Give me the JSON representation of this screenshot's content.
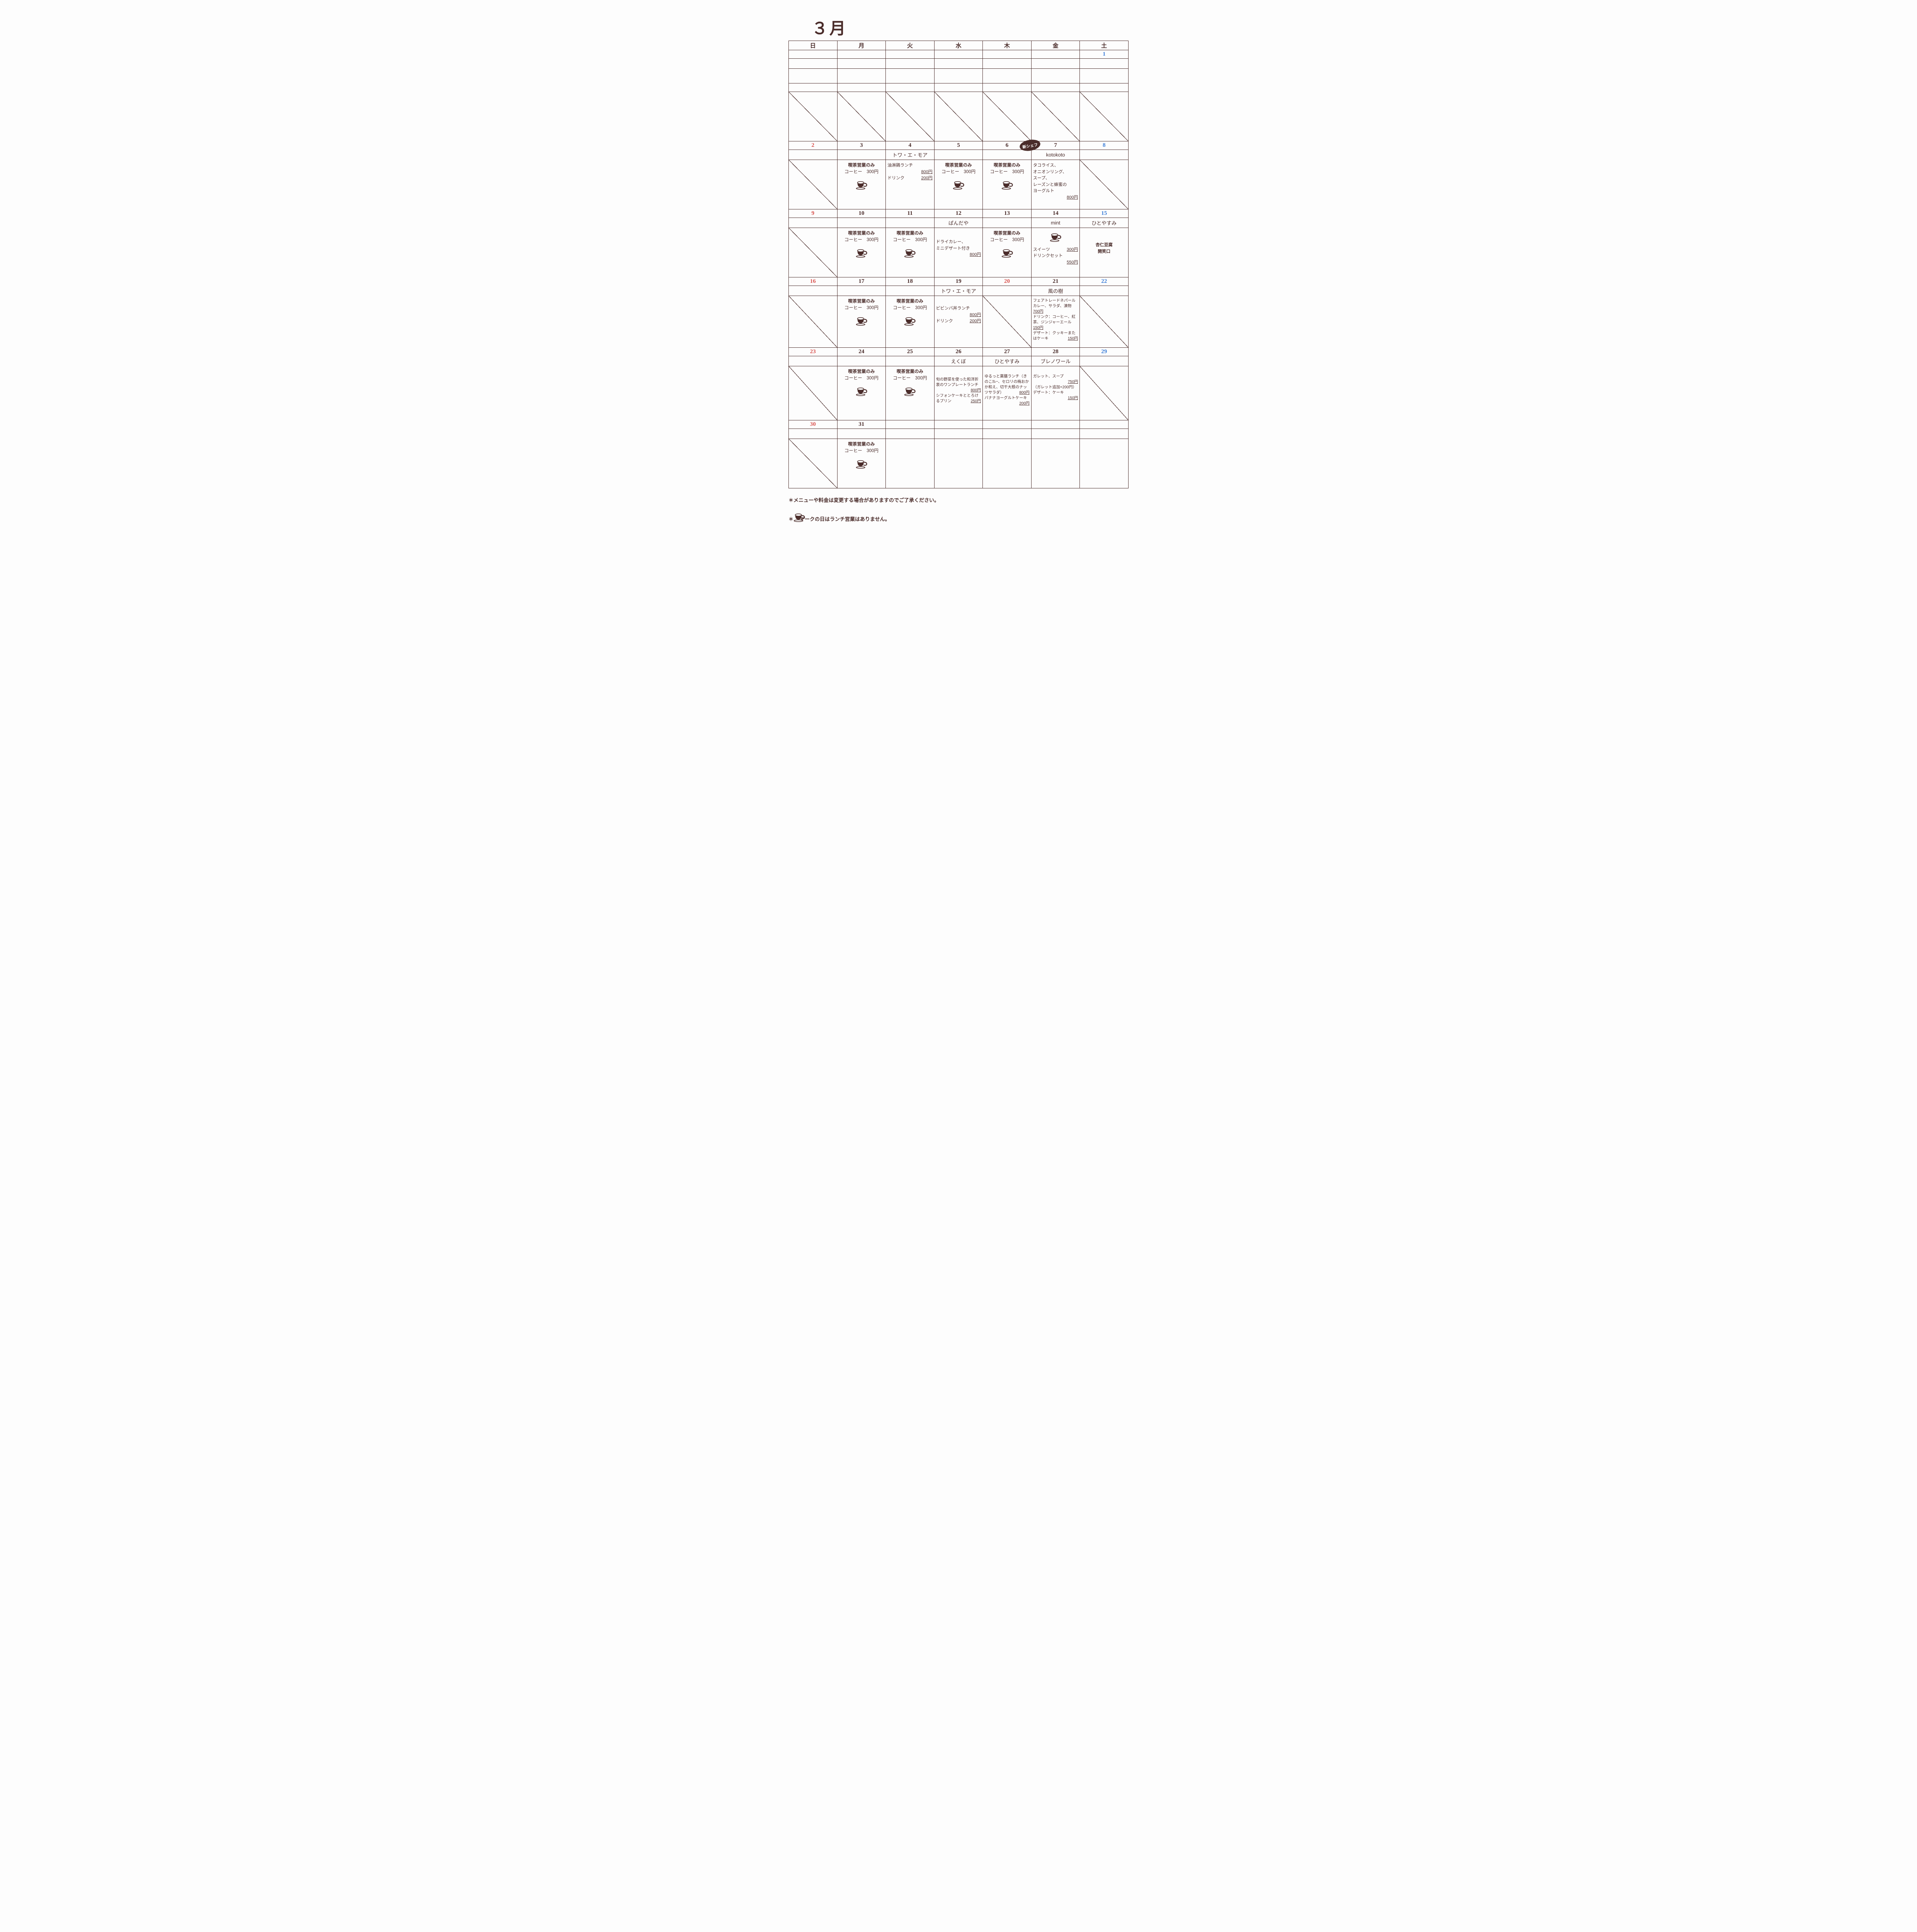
{
  "month_title": "３月",
  "day_headers": [
    "日",
    "月",
    "火",
    "水",
    "木",
    "金",
    "土"
  ],
  "coffee": {
    "line1": "喫茶営業のみ",
    "line2": "コーヒー　300円"
  },
  "badge_text": "新シェフ",
  "weeks": [
    {
      "nums": [
        "",
        "",
        "",
        "",
        "",
        "",
        "1"
      ],
      "num_cls": [
        "",
        "",
        "",
        "",
        "",
        "",
        "sat"
      ],
      "subs": [
        "",
        "",
        "",
        "",
        "",
        "",
        ""
      ],
      "body_h": 38,
      "cells": [
        {
          "t": "blank"
        },
        {
          "t": "blank"
        },
        {
          "t": "blank"
        },
        {
          "t": "blank"
        },
        {
          "t": "blank"
        },
        {
          "t": "blank"
        },
        {
          "t": "blank"
        }
      ]
    },
    {
      "nums": [
        "",
        "",
        "",
        "",
        "",
        "",
        ""
      ],
      "num_cls": [
        "",
        "",
        "",
        "",
        "",
        "",
        ""
      ],
      "subs": null,
      "body_h": 128,
      "cells": [
        {
          "t": "slash"
        },
        {
          "t": "slash"
        },
        {
          "t": "slash"
        },
        {
          "t": "slash"
        },
        {
          "t": "slash"
        },
        {
          "t": "slash"
        },
        {
          "t": "slash"
        }
      ]
    },
    {
      "nums": [
        "2",
        "3",
        "4",
        "5",
        "6",
        "7",
        "8"
      ],
      "num_cls": [
        "sun",
        "",
        "",
        "",
        "",
        "",
        "sat"
      ],
      "badge_at": 4,
      "subs": [
        "",
        "",
        "トワ・エ・モア",
        "",
        "",
        "kotokoto",
        ""
      ],
      "body_h": 128,
      "cells": [
        {
          "t": "slash"
        },
        {
          "t": "coffee"
        },
        {
          "t": "menu",
          "lines": [
            {
              "text": "油淋鶏ランチ",
              "price": ""
            },
            {
              "text": "",
              "price": "800円"
            },
            {
              "text": "ドリンク",
              "price": "200円"
            }
          ]
        },
        {
          "t": "coffee"
        },
        {
          "t": "coffee"
        },
        {
          "t": "menu",
          "lines": [
            {
              "text": "タコライス、",
              "price": ""
            },
            {
              "text": "オニオンリング、",
              "price": ""
            },
            {
              "text": "スープ、",
              "price": ""
            },
            {
              "text": "レーズンと蜂蜜の",
              "price": ""
            },
            {
              "text": "ヨーグルト",
              "price": ""
            },
            {
              "text": "",
              "price": "800円"
            }
          ]
        },
        {
          "t": "slash"
        }
      ]
    },
    {
      "nums": [
        "9",
        "10",
        "11",
        "12",
        "13",
        "14",
        "15"
      ],
      "num_cls": [
        "sun",
        "",
        "",
        "",
        "",
        "",
        "sat"
      ],
      "subs": [
        "",
        "",
        "",
        "ぱんだや",
        "",
        "mint",
        "ひとやすみ"
      ],
      "body_h": 128,
      "cells": [
        {
          "t": "slash"
        },
        {
          "t": "coffee"
        },
        {
          "t": "coffee"
        },
        {
          "t": "menu",
          "lines": [
            {
              "text": "ドライカレー、",
              "price": ""
            },
            {
              "text": "ミニデザート付き",
              "price": ""
            },
            {
              "text": "",
              "price": "800円"
            }
          ],
          "pushdown": 22
        },
        {
          "t": "coffee"
        },
        {
          "t": "menu",
          "center_icon": true,
          "lines": [
            {
              "text": "スイーツ",
              "price": "300円"
            },
            {
              "text": "ドリンクセット",
              "price": ""
            },
            {
              "text": "",
              "price": "550円"
            }
          ]
        },
        {
          "t": "text_center",
          "lines": [
            "杏仁豆腐",
            "開笑口"
          ],
          "pushdown": 30
        }
      ]
    },
    {
      "nums": [
        "16",
        "17",
        "18",
        "19",
        "20",
        "21",
        "22"
      ],
      "num_cls": [
        "sun",
        "",
        "",
        "",
        "hol",
        "",
        "sat"
      ],
      "subs": [
        "",
        "",
        "",
        "トワ・エ・モア",
        "",
        "風の樹",
        ""
      ],
      "body_h": 134,
      "cells": [
        {
          "t": "slash"
        },
        {
          "t": "coffee"
        },
        {
          "t": "coffee"
        },
        {
          "t": "menu",
          "lines": [
            {
              "text": "ビビンバ丼ランチ",
              "price": ""
            },
            {
              "text": "",
              "price": "800円"
            },
            {
              "text": "ドリンク",
              "price": "200円"
            }
          ],
          "pushdown": 18
        },
        {
          "t": "slash"
        },
        {
          "t": "menu",
          "small": true,
          "lines": [
            {
              "text": "フェアトレードネパールカレー、サラダ、漬物",
              "price": ""
            },
            {
              "text": "700円",
              "price": "",
              "u": true
            },
            {
              "text": "ドリンク：コーヒー、紅茶、ジンジャーエール",
              "price": ""
            },
            {
              "text": "150円",
              "price": "",
              "u": true
            },
            {
              "text": "デザート：クッキーまたはケーキ",
              "price": "150円"
            }
          ]
        },
        {
          "t": "slash"
        }
      ]
    },
    {
      "nums": [
        "23",
        "24",
        "25",
        "26",
        "27",
        "28",
        "29"
      ],
      "num_cls": [
        "sun",
        "",
        "",
        "",
        "",
        "",
        "sat"
      ],
      "subs": [
        "",
        "",
        "",
        "えくぼ",
        "ひとやすみ",
        "ブレノワール",
        ""
      ],
      "body_h": 140,
      "cells": [
        {
          "t": "slash"
        },
        {
          "t": "coffee"
        },
        {
          "t": "coffee"
        },
        {
          "t": "menu",
          "small": true,
          "lines": [
            {
              "text": "旬の野菜を使った和洋折衷のワンプレートランチ",
              "price": "800円"
            },
            {
              "text": "シフォンケーキととろけるプリン",
              "price": "250円"
            }
          ],
          "pushdown": 22
        },
        {
          "t": "menu",
          "small": true,
          "lines": [
            {
              "text": "ゆるっと薬膳ランチ（きのこｶﾚｰ、セロリの梅おかか和え、切干大根のナッツサラダ）",
              "price": "800円"
            },
            {
              "text": "",
              "price": ""
            },
            {
              "text": "バナナヨーグルトケーキ",
              "price": "200円"
            }
          ],
          "pushdown": 14
        },
        {
          "t": "menu",
          "small": true,
          "lines": [
            {
              "text": "ガレット、スープ",
              "price": ""
            },
            {
              "text": "",
              "price": "750円"
            },
            {
              "text": "（ガレット追加+200円）",
              "price": ""
            },
            {
              "text": "デザート：ケーキ",
              "price": ""
            },
            {
              "text": "",
              "price": "150円"
            }
          ],
          "pushdown": 14
        },
        {
          "t": "slash"
        }
      ]
    },
    {
      "nums": [
        "30",
        "31",
        "",
        "",
        "",
        "",
        ""
      ],
      "num_cls": [
        "sun",
        "",
        "",
        "",
        "",
        "",
        ""
      ],
      "subs": [
        "",
        "",
        "",
        "",
        "",
        "",
        ""
      ],
      "body_h": 128,
      "cells": [
        {
          "t": "slash"
        },
        {
          "t": "coffee"
        },
        {
          "t": "blank"
        },
        {
          "t": "blank"
        },
        {
          "t": "blank"
        },
        {
          "t": "blank"
        },
        {
          "t": "blank"
        }
      ]
    }
  ],
  "notes": [
    "＊メニューや料金は変更する場合がありますのでご了承ください。",
    "＊{CUP}マークの日はランチ営業はありません。"
  ],
  "colors": {
    "ink": "#4a2c2a",
    "sun": "#d9534f",
    "sat": "#3b7dd8",
    "bg": "#fdfdfd"
  }
}
